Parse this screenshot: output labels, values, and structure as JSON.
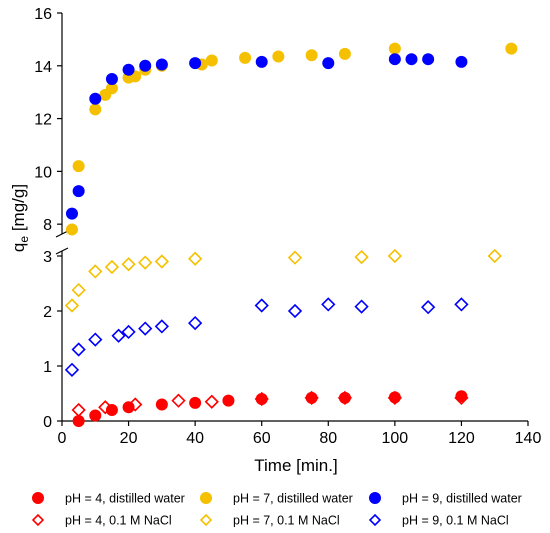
{
  "chart_data": {
    "type": "scatter",
    "title": "",
    "xlabel": "Time [min.]",
    "ylabel_main": "q",
    "ylabel_sub": "e",
    "ylabel_unit": " [mg/g]",
    "xlim": [
      0,
      140
    ],
    "xticks": [
      0,
      20,
      40,
      60,
      80,
      100,
      120,
      140
    ],
    "lower_axis": {
      "ylim": [
        0,
        3.2
      ],
      "yticks": [
        0,
        1,
        2,
        3
      ]
    },
    "upper_axis": {
      "ylim": [
        7.4,
        16
      ],
      "yticks": [
        8,
        10,
        12,
        14,
        16
      ]
    },
    "axis_break": true,
    "grid": false,
    "legend_position": "bottom",
    "series": [
      {
        "name": "pH = 4, distilled water",
        "color": "#ff0000",
        "marker": "circle-filled",
        "x": [
          5,
          10,
          15,
          20,
          30,
          40,
          50,
          60,
          75,
          85,
          100,
          120
        ],
        "y": [
          0.0,
          0.1,
          0.2,
          0.25,
          0.3,
          0.33,
          0.37,
          0.4,
          0.42,
          0.42,
          0.43,
          0.45
        ]
      },
      {
        "name": "pH = 7, distilled water",
        "color": "#f5c000",
        "marker": "circle-filled",
        "x": [
          3,
          5,
          10,
          13,
          15,
          20,
          22,
          25,
          30,
          42,
          45,
          55,
          65,
          75,
          85,
          100,
          135
        ],
        "y": [
          7.8,
          10.2,
          12.35,
          12.9,
          13.15,
          13.55,
          13.6,
          13.85,
          14.0,
          14.05,
          14.2,
          14.3,
          14.35,
          14.4,
          14.45,
          14.65,
          14.65
        ]
      },
      {
        "name": "pH = 9, distilled water",
        "color": "#0000ff",
        "marker": "circle-filled",
        "x": [
          3,
          5,
          10,
          15,
          20,
          25,
          30,
          40,
          60,
          80,
          100,
          105,
          110,
          120
        ],
        "y": [
          8.4,
          9.25,
          12.75,
          13.5,
          13.85,
          14.0,
          14.05,
          14.1,
          14.15,
          14.1,
          14.25,
          14.25,
          14.25,
          14.15
        ]
      },
      {
        "name": "pH = 4, 0.1 M NaCl",
        "color": "#ff0000",
        "marker": "diamond-open",
        "x": [
          5,
          13,
          22,
          35,
          45,
          60,
          75,
          85,
          100,
          120
        ],
        "y": [
          0.2,
          0.25,
          0.3,
          0.37,
          0.35,
          0.4,
          0.42,
          0.42,
          0.42,
          0.42
        ]
      },
      {
        "name": "pH = 7, 0.1 M NaCl",
        "color": "#f5c000",
        "marker": "diamond-open",
        "x": [
          3,
          5,
          10,
          15,
          20,
          25,
          30,
          40,
          70,
          90,
          100,
          130
        ],
        "y": [
          2.1,
          2.38,
          2.72,
          2.8,
          2.85,
          2.88,
          2.9,
          2.95,
          2.97,
          2.98,
          3.0,
          3.0
        ]
      },
      {
        "name": "pH = 9, 0.1 M NaCl",
        "color": "#0000ff",
        "marker": "diamond-open",
        "x": [
          3,
          5,
          10,
          17,
          20,
          25,
          30,
          40,
          60,
          70,
          80,
          90,
          110,
          120
        ],
        "y": [
          0.93,
          1.3,
          1.48,
          1.55,
          1.62,
          1.68,
          1.72,
          1.78,
          2.1,
          2.0,
          2.12,
          2.08,
          2.07,
          2.12
        ]
      }
    ]
  }
}
